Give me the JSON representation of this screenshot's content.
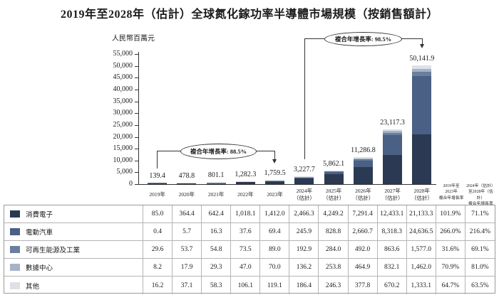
{
  "title": "2019年至2028年（估計）全球氮化鎵功率半導體市場規模（按銷售額計）",
  "chart_data": {
    "type": "bar",
    "stacked": true,
    "unit_label": "人民幣百萬元",
    "ylabel": "人民幣百萬元",
    "xlabel": "",
    "ylim": [
      0,
      55000
    ],
    "ytick_step": 5000,
    "grid": false,
    "legend_position": "table-left",
    "categories": [
      "2019年",
      "2020年",
      "2021年",
      "2022年",
      "2023年",
      "2024年（估計）",
      "2025年（估計）",
      "2026年（估計）",
      "2027年（估計）",
      "2028年（估計）"
    ],
    "totals": [
      139.4,
      478.8,
      801.1,
      1282.3,
      1759.5,
      3227.7,
      5862.1,
      11286.8,
      23117.3,
      50141.9
    ],
    "total_labels": [
      "139.4",
      "478.8",
      "801.1",
      "1,282.3",
      "1,759.5",
      "3,227.7",
      "5,862.1",
      "11,286.8",
      "23,117.3",
      "50,141.9"
    ],
    "series": [
      {
        "key": "consumer-electronics",
        "name": "消費電子",
        "color": "#2b3a52",
        "values": [
          85.0,
          364.4,
          642.4,
          1018.1,
          1412.0,
          2466.3,
          4249.2,
          7291.4,
          12433.1,
          21133.3
        ]
      },
      {
        "key": "electric-vehicles",
        "name": "電動汽車",
        "color": "#4a6084",
        "values": [
          0.4,
          5.7,
          16.3,
          37.6,
          69.4,
          245.9,
          828.8,
          2660.7,
          8318.3,
          24636.5
        ]
      },
      {
        "key": "renewable-energy-industrial",
        "name": "可再生能源及工業",
        "color": "#68809e",
        "values": [
          29.6,
          53.7,
          54.8,
          73.5,
          89.0,
          192.9,
          284.0,
          492.0,
          863.6,
          1577.0
        ]
      },
      {
        "key": "data-centers",
        "name": "數據中心",
        "color": "#a6b2c6",
        "values": [
          8.2,
          17.9,
          29.3,
          47.0,
          70.0,
          136.2,
          253.8,
          464.9,
          832.1,
          1462.0
        ]
      },
      {
        "key": "others",
        "name": "其他",
        "color": "#dde1e6",
        "values": [
          16.2,
          37.1,
          58.3,
          106.1,
          119.1,
          186.4,
          246.3,
          377.8,
          670.2,
          1333.1
        ]
      }
    ],
    "annotations": [
      {
        "label": "複合年增長率: 88.5%",
        "from_category": "2019年",
        "to_category": "2023年"
      },
      {
        "label": "複合年增長率: 98.5%",
        "from_category": "2024年（估計）",
        "to_category": "2028年（估計）"
      }
    ]
  },
  "xaxis": {
    "year_labels": [
      "2019年",
      "2020年",
      "2021年",
      "2022年",
      "2023年",
      "2024年",
      "2025年",
      "2026年",
      "2027年",
      "2028年"
    ],
    "estimate_suffix": "（估計）",
    "estimate_from_index": 5,
    "cagr_headers": [
      "2019年至\n2023年\n複合年增長率",
      "2024年（估計）\n至2028年（估計）\n複合年增長率"
    ]
  },
  "table": {
    "rows": [
      {
        "key": "consumer-electronics",
        "label": "消費電子",
        "swatch": "#2b3a52",
        "values": [
          "85.0",
          "364.4",
          "642.4",
          "1,018.1",
          "1,412.0",
          "2,466.3",
          "4,249.2",
          "7,291.4",
          "12,433.1",
          "21,133.3",
          "101.9%",
          "71.1%"
        ]
      },
      {
        "key": "electric-vehicles",
        "label": "電動汽車",
        "swatch": "#4a6084",
        "values": [
          "0.4",
          "5.7",
          "16.3",
          "37.6",
          "69.4",
          "245.9",
          "828.8",
          "2,660.7",
          "8,318.3",
          "24,636.5",
          "266.0%",
          "216.4%"
        ]
      },
      {
        "key": "renewable-energy-industrial",
        "label": "可再生能源及工業",
        "swatch": "#68809e",
        "values": [
          "29.6",
          "53.7",
          "54.8",
          "73.5",
          "89.0",
          "192.9",
          "284.0",
          "492.0",
          "863.6",
          "1,577.0",
          "31.6%",
          "69.1%"
        ]
      },
      {
        "key": "data-centers",
        "label": "數據中心",
        "swatch": "#a6b2c6",
        "values": [
          "8.2",
          "17.9",
          "29.3",
          "47.0",
          "70.0",
          "136.2",
          "253.8",
          "464.9",
          "832.1",
          "1,462.0",
          "70.9%",
          "81.0%"
        ]
      },
      {
        "key": "others",
        "label": "其他",
        "swatch": "#dde1e6",
        "values": [
          "16.2",
          "37.1",
          "58.3",
          "106.1",
          "119.1",
          "186.4",
          "246.3",
          "377.8",
          "670.2",
          "1,333.1",
          "64.7%",
          "63.5%"
        ]
      }
    ]
  }
}
